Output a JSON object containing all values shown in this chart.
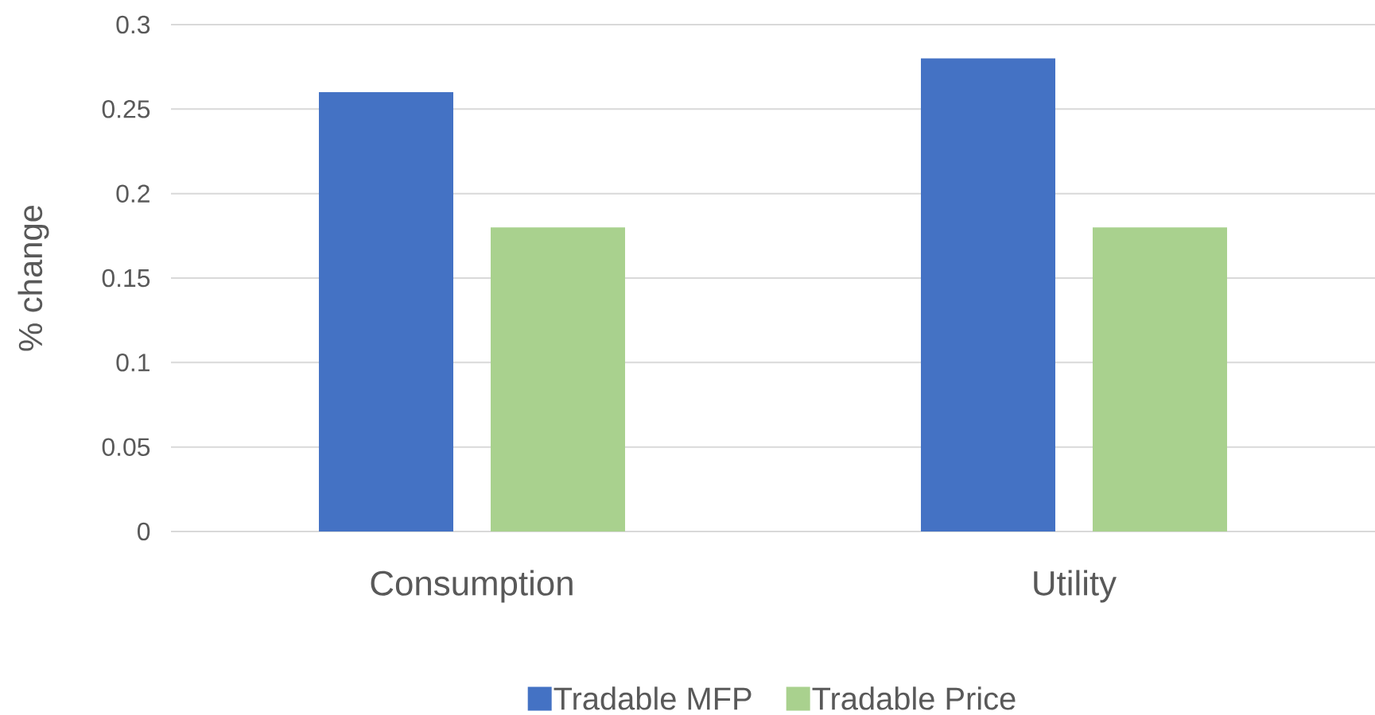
{
  "chart_data": {
    "type": "bar",
    "ylabel": "% change",
    "categories": [
      "Consumption",
      "Utility"
    ],
    "series": [
      {
        "name": "Tradable MFP",
        "color": "#4472c4",
        "values": [
          0.26,
          0.28
        ]
      },
      {
        "name": "Tradable Price",
        "color": "#a9d18e",
        "values": [
          0.18,
          0.18
        ]
      }
    ],
    "ylim": [
      0,
      0.3
    ],
    "yticks": [
      0,
      0.05,
      0.1,
      0.15,
      0.2,
      0.25,
      0.3
    ],
    "grid": "y",
    "legend": "bottom"
  }
}
